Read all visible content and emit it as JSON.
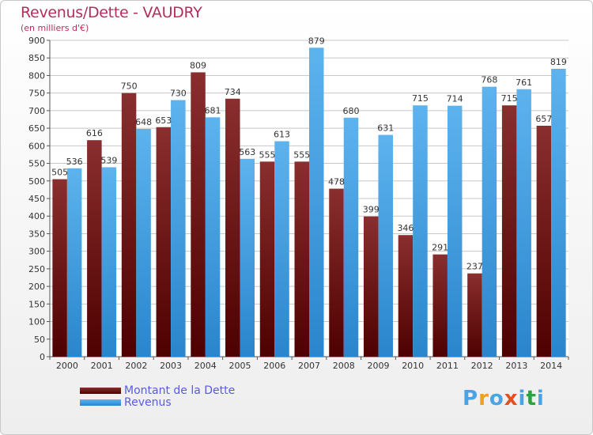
{
  "header": {
    "title": "Revenus/Dette - VAUDRY",
    "subtitle": "(en milliers d'€)"
  },
  "legend": {
    "items": [
      {
        "label": "Montant de la Dette",
        "color": "#6b1515"
      },
      {
        "label": "Revenus",
        "color": "#4aa3e2"
      }
    ]
  },
  "logo": {
    "text": "Proxiti",
    "colors": [
      "#4aa3e2",
      "#f0a020",
      "#4aa3e2",
      "#e05020",
      "#4aa3e2",
      "#30a040",
      "#4aa3e2"
    ]
  },
  "chart_data": {
    "type": "bar",
    "title": "Revenus/Dette - VAUDRY",
    "subtitle": "(en milliers d'€)",
    "xlabel": "",
    "ylabel": "",
    "ylim": [
      0,
      900
    ],
    "ytick_step": 50,
    "grid": true,
    "categories": [
      "2000",
      "2001",
      "2002",
      "2003",
      "2004",
      "2005",
      "2006",
      "2007",
      "2008",
      "2009",
      "2010",
      "2011",
      "2012",
      "2013",
      "2014"
    ],
    "series": [
      {
        "name": "Montant de la Dette",
        "color": "#6b1515",
        "values": [
          505,
          616,
          750,
          653,
          809,
          734,
          555,
          555,
          478,
          399,
          346,
          291,
          237,
          715,
          657
        ]
      },
      {
        "name": "Revenus",
        "color": "#4aa3e2",
        "values": [
          536,
          539,
          648,
          730,
          681,
          563,
          613,
          879,
          680,
          631,
          715,
          714,
          768,
          761,
          819
        ]
      }
    ],
    "yticks": [
      "0",
      "50",
      "100",
      "150",
      "200",
      "250",
      "300",
      "350",
      "400",
      "450",
      "500",
      "550",
      "600",
      "650",
      "700",
      "750",
      "800",
      "850",
      "900"
    ]
  }
}
